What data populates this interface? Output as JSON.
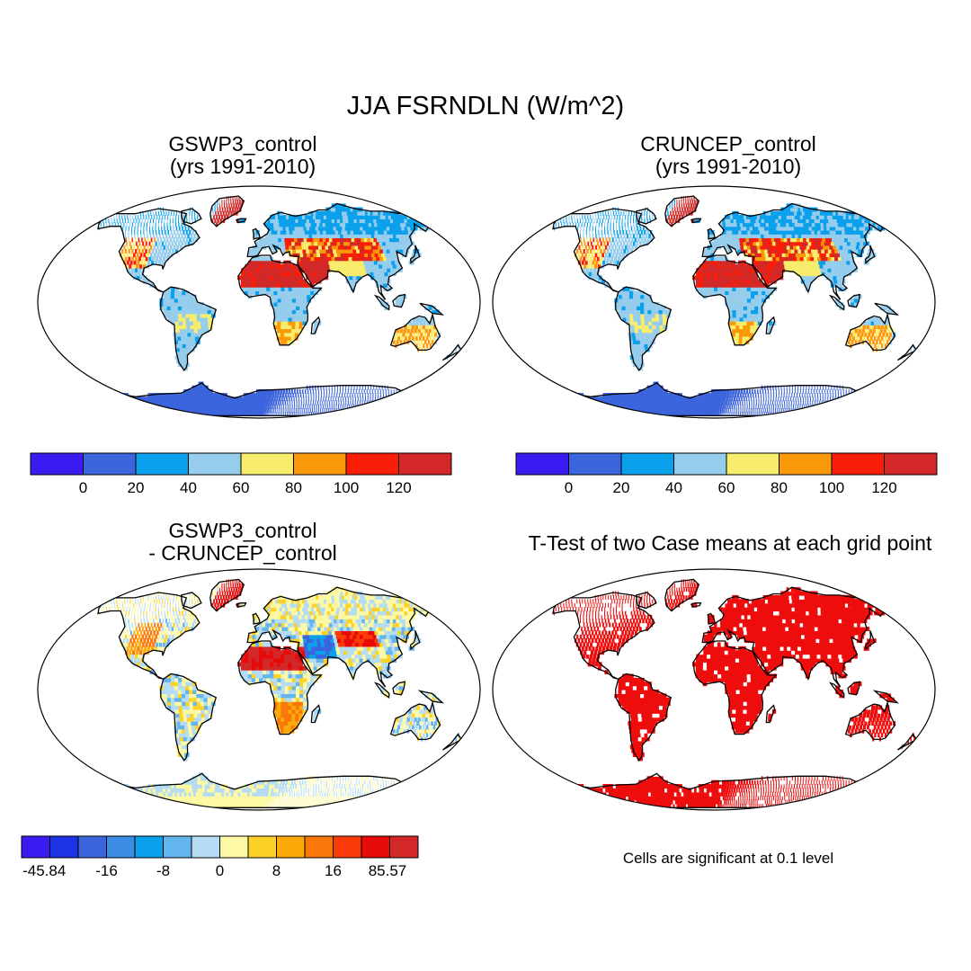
{
  "title": "JJA FSRNDLN (W/m^2)",
  "panels": [
    {
      "id": "gswp3",
      "title_line1": "GSWP3_control",
      "title_line2": "(yrs 1991-2010)",
      "field": "absolute"
    },
    {
      "id": "cruncep",
      "title_line1": "CRUNCEP_control",
      "title_line2": "(yrs 1991-2010)",
      "field": "absolute"
    },
    {
      "id": "diff",
      "title_line1": "GSWP3_control",
      "title_line2": "- CRUNCEP_control",
      "field": "difference"
    },
    {
      "id": "ttest",
      "title_line1": "T-Test of two Case means at each grid point",
      "title_line2": "",
      "field": "significance"
    }
  ],
  "colorbar_abs": {
    "colors": [
      "#3a1cf2",
      "#3c64dc",
      "#0aa0ec",
      "#96ccec",
      "#f8ec6c",
      "#fa9a0a",
      "#fa1e08",
      "#d22828"
    ],
    "tick_labels": [
      "0",
      "20",
      "40",
      "60",
      "80",
      "100",
      "120"
    ]
  },
  "colorbar_diff": {
    "colors": [
      "#3a1cf2",
      "#1e32e6",
      "#3c64dc",
      "#3c8ce6",
      "#0aa0ec",
      "#64b4ee",
      "#b4dcf4",
      "#fcf8a4",
      "#fcd228",
      "#fcaa0a",
      "#fa780a",
      "#fa3c08",
      "#e60a0a",
      "#d22828"
    ],
    "tick_labels": [
      "-45.84",
      "-16",
      "-8",
      "0",
      "8",
      "16",
      "85.57"
    ]
  },
  "ttest_color": "#ee0d0d",
  "note": "Cells are significant at 0.1 level"
}
